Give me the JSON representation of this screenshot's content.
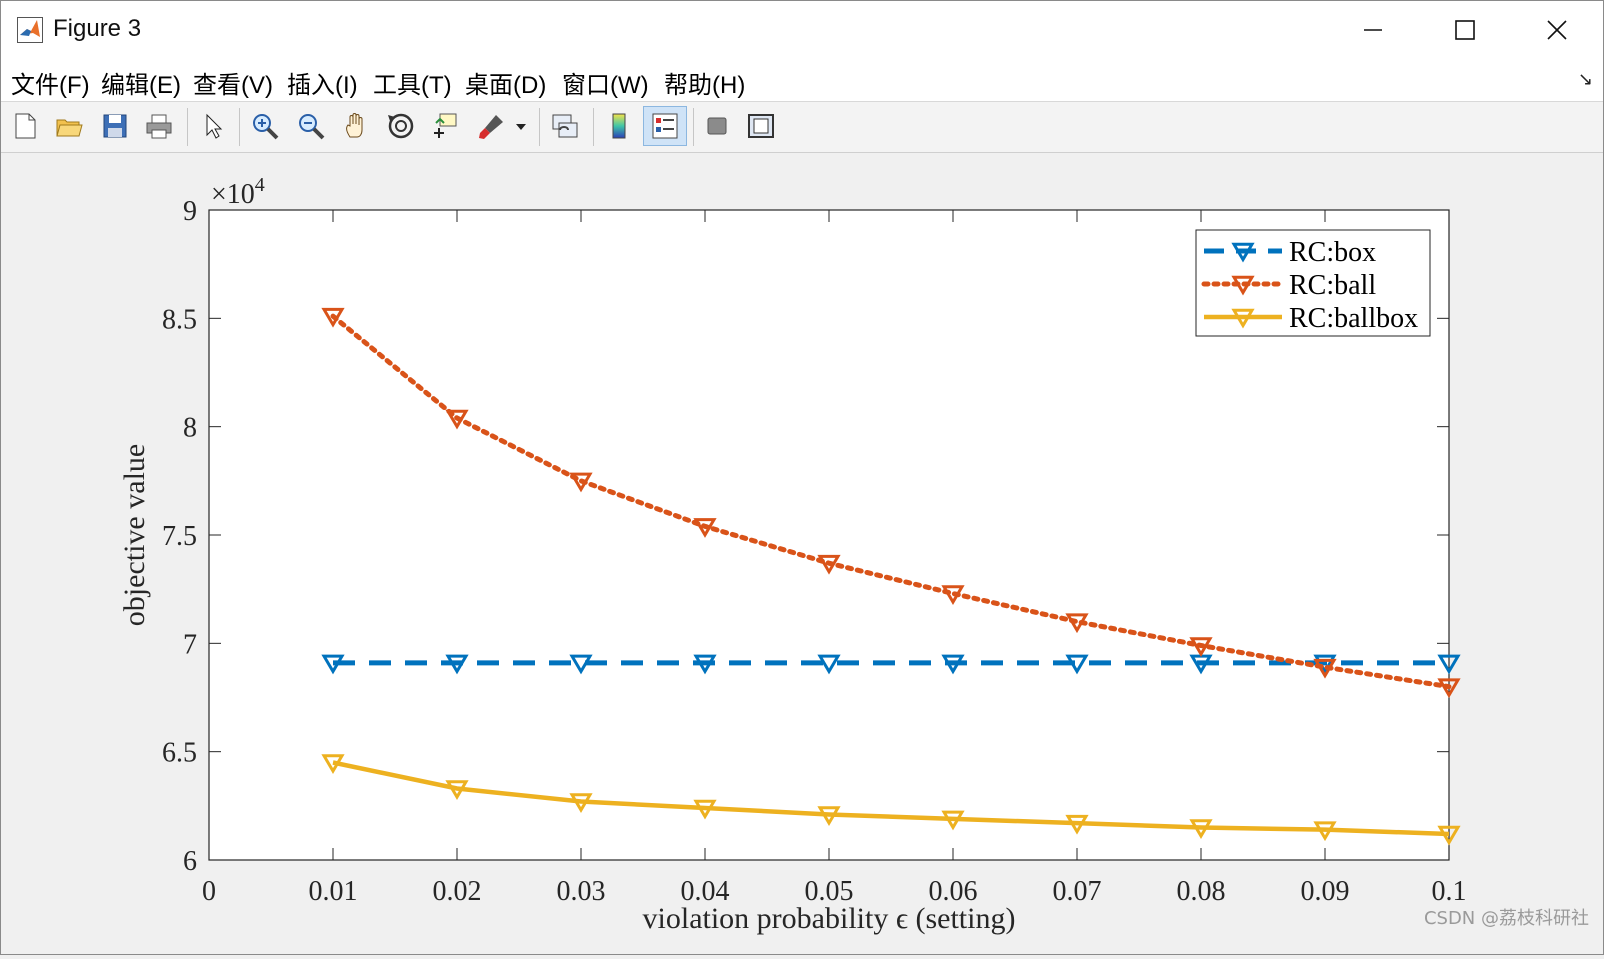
{
  "window": {
    "title": "Figure 3"
  },
  "menu": [
    "文件(F)",
    "编辑(E)",
    "查看(V)",
    "插入(I)",
    "工具(T)",
    "桌面(D)",
    "窗口(W)",
    "帮助(H)"
  ],
  "toolbar_icons": [
    "new-figure-icon",
    "open-file-icon",
    "save-icon",
    "print-icon",
    "pointer-icon",
    "zoom-in-icon",
    "zoom-out-icon",
    "pan-hand-icon",
    "rotate-3d-icon",
    "data-cursor-icon",
    "brush-icon",
    "brush-dropdown-icon",
    "link-plot-icon",
    "colorbar-icon",
    "legend-icon",
    "hide-plot-tools-icon",
    "show-plot-tools-icon"
  ],
  "watermark": "CSDN @荔枝科研社",
  "chart_data": {
    "type": "line",
    "xlabel": "violation probability ϵ (setting)",
    "ylabel": "objective value",
    "exponent_label": "×10",
    "exponent_power": "4",
    "xlim": [
      0,
      0.1
    ],
    "ylim": [
      6,
      9
    ],
    "xticks": [
      "0",
      "0.01",
      "0.02",
      "0.03",
      "0.04",
      "0.05",
      "0.06",
      "0.07",
      "0.08",
      "0.09",
      "0.1"
    ],
    "yticks": [
      "6",
      "6.5",
      "7",
      "7.5",
      "8",
      "8.5",
      "9"
    ],
    "x": [
      0.01,
      0.02,
      0.03,
      0.04,
      0.05,
      0.06,
      0.07,
      0.08,
      0.09,
      0.1
    ],
    "legend_position": "top-right",
    "series": [
      {
        "name": "RC:box",
        "color": "#0072BD",
        "style": "dashed",
        "marker": "down-triangle",
        "values": [
          6.91,
          6.91,
          6.91,
          6.91,
          6.91,
          6.91,
          6.91,
          6.91,
          6.91,
          6.91
        ]
      },
      {
        "name": "RC:ball",
        "color": "#D95319",
        "style": "dotted",
        "marker": "down-triangle",
        "values": [
          8.51,
          8.04,
          7.75,
          7.54,
          7.37,
          7.23,
          7.1,
          6.99,
          6.89,
          6.8
        ]
      },
      {
        "name": "RC:ballbox",
        "color": "#EDB120",
        "style": "solid",
        "marker": "down-triangle",
        "values": [
          6.45,
          6.33,
          6.27,
          6.24,
          6.21,
          6.19,
          6.17,
          6.15,
          6.14,
          6.12
        ]
      }
    ]
  }
}
